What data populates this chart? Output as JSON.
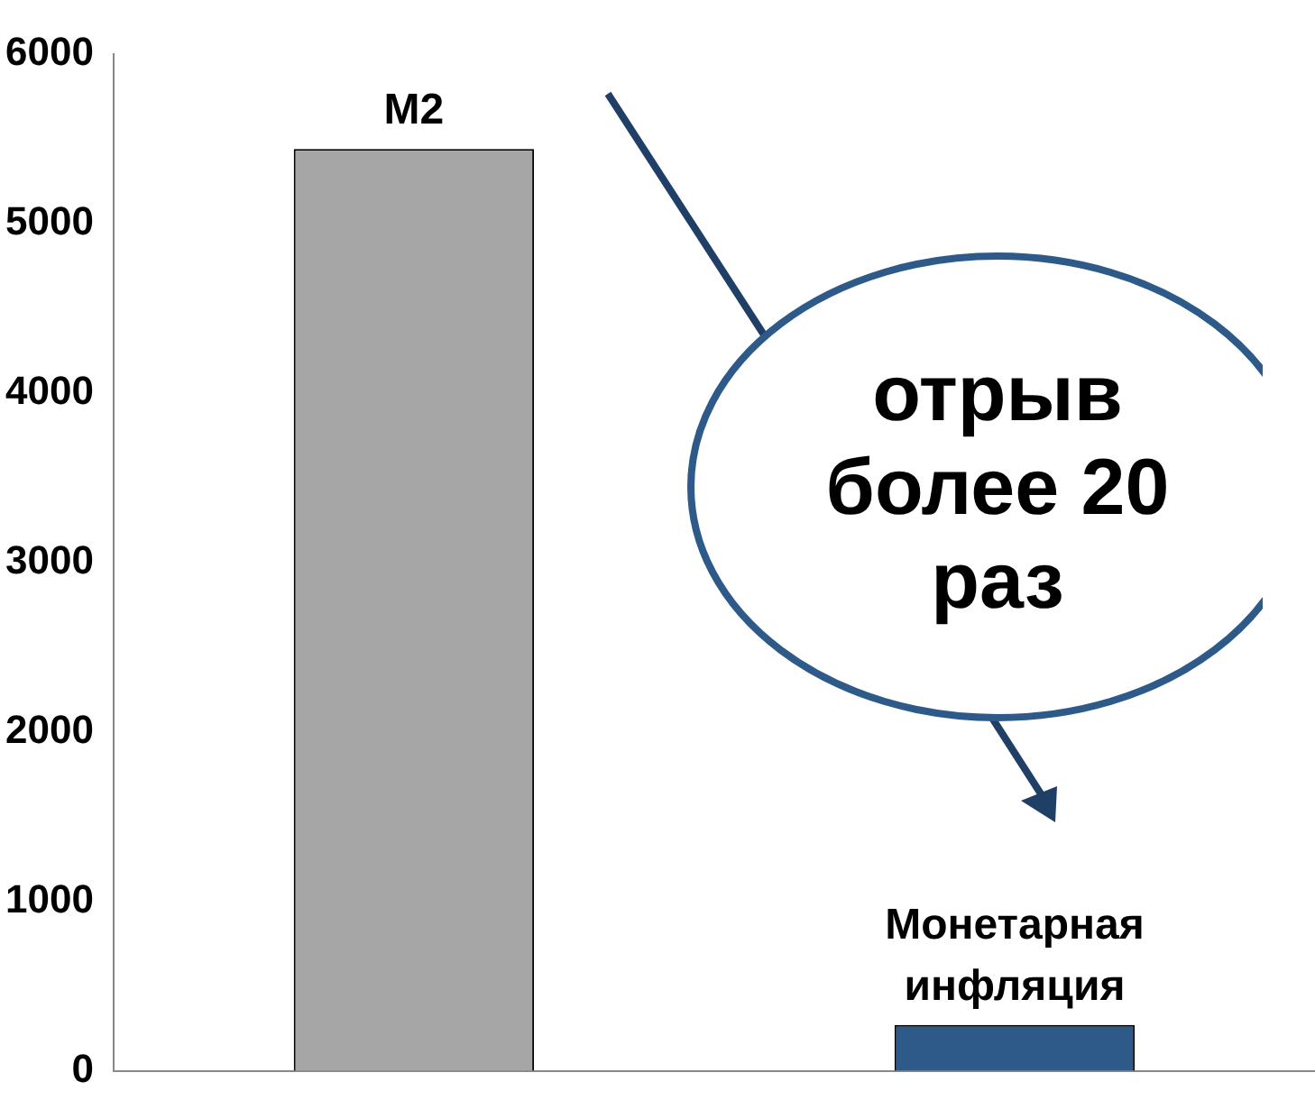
{
  "chart_data": {
    "type": "bar",
    "categories": [
      "M2",
      "Монетарная инфляция"
    ],
    "values": [
      5440,
      270
    ],
    "colors": [
      "#a6a6a6",
      "#2e5a8a"
    ],
    "ylim": [
      0,
      6000
    ],
    "yticks": [
      0,
      1000,
      2000,
      3000,
      4000,
      5000,
      6000
    ],
    "grid": false,
    "legend": false,
    "tick_labels": "y",
    "annotations": [
      "отрыв более 20 раз"
    ]
  }
}
